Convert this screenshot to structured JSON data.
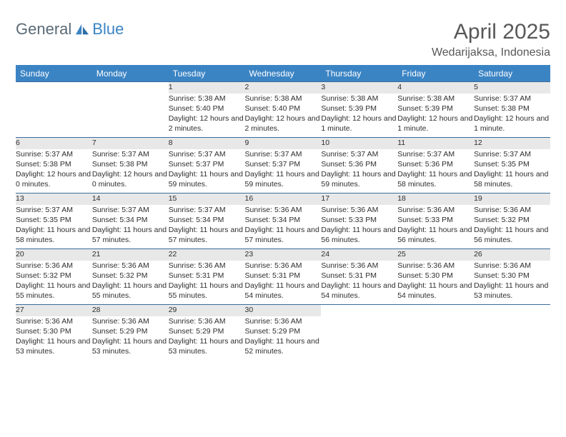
{
  "logo": {
    "text1": "General",
    "text2": "Blue"
  },
  "title": {
    "month": "April 2025",
    "location": "Wedarijaksa, Indonesia"
  },
  "colors": {
    "header_bg": "#3b84c4",
    "header_text": "#ffffff",
    "daynum_bg": "#e8e8e8",
    "daynum_text": "#6a6a6a",
    "row_border": "#3b6d9c",
    "body_text": "#2e2e2e",
    "logo_gray": "#5a6a76",
    "logo_blue": "#3b84c4",
    "title_text": "#585858"
  },
  "day_headers": [
    "Sunday",
    "Monday",
    "Tuesday",
    "Wednesday",
    "Thursday",
    "Friday",
    "Saturday"
  ],
  "weeks": [
    [
      null,
      null,
      {
        "n": "1",
        "sr": "5:38 AM",
        "ss": "5:40 PM",
        "dl": "12 hours and 2 minutes."
      },
      {
        "n": "2",
        "sr": "5:38 AM",
        "ss": "5:40 PM",
        "dl": "12 hours and 2 minutes."
      },
      {
        "n": "3",
        "sr": "5:38 AM",
        "ss": "5:39 PM",
        "dl": "12 hours and 1 minute."
      },
      {
        "n": "4",
        "sr": "5:38 AM",
        "ss": "5:39 PM",
        "dl": "12 hours and 1 minute."
      },
      {
        "n": "5",
        "sr": "5:37 AM",
        "ss": "5:38 PM",
        "dl": "12 hours and 1 minute."
      }
    ],
    [
      {
        "n": "6",
        "sr": "5:37 AM",
        "ss": "5:38 PM",
        "dl": "12 hours and 0 minutes."
      },
      {
        "n": "7",
        "sr": "5:37 AM",
        "ss": "5:38 PM",
        "dl": "12 hours and 0 minutes."
      },
      {
        "n": "8",
        "sr": "5:37 AM",
        "ss": "5:37 PM",
        "dl": "11 hours and 59 minutes."
      },
      {
        "n": "9",
        "sr": "5:37 AM",
        "ss": "5:37 PM",
        "dl": "11 hours and 59 minutes."
      },
      {
        "n": "10",
        "sr": "5:37 AM",
        "ss": "5:36 PM",
        "dl": "11 hours and 59 minutes."
      },
      {
        "n": "11",
        "sr": "5:37 AM",
        "ss": "5:36 PM",
        "dl": "11 hours and 58 minutes."
      },
      {
        "n": "12",
        "sr": "5:37 AM",
        "ss": "5:35 PM",
        "dl": "11 hours and 58 minutes."
      }
    ],
    [
      {
        "n": "13",
        "sr": "5:37 AM",
        "ss": "5:35 PM",
        "dl": "11 hours and 58 minutes."
      },
      {
        "n": "14",
        "sr": "5:37 AM",
        "ss": "5:34 PM",
        "dl": "11 hours and 57 minutes."
      },
      {
        "n": "15",
        "sr": "5:37 AM",
        "ss": "5:34 PM",
        "dl": "11 hours and 57 minutes."
      },
      {
        "n": "16",
        "sr": "5:36 AM",
        "ss": "5:34 PM",
        "dl": "11 hours and 57 minutes."
      },
      {
        "n": "17",
        "sr": "5:36 AM",
        "ss": "5:33 PM",
        "dl": "11 hours and 56 minutes."
      },
      {
        "n": "18",
        "sr": "5:36 AM",
        "ss": "5:33 PM",
        "dl": "11 hours and 56 minutes."
      },
      {
        "n": "19",
        "sr": "5:36 AM",
        "ss": "5:32 PM",
        "dl": "11 hours and 56 minutes."
      }
    ],
    [
      {
        "n": "20",
        "sr": "5:36 AM",
        "ss": "5:32 PM",
        "dl": "11 hours and 55 minutes."
      },
      {
        "n": "21",
        "sr": "5:36 AM",
        "ss": "5:32 PM",
        "dl": "11 hours and 55 minutes."
      },
      {
        "n": "22",
        "sr": "5:36 AM",
        "ss": "5:31 PM",
        "dl": "11 hours and 55 minutes."
      },
      {
        "n": "23",
        "sr": "5:36 AM",
        "ss": "5:31 PM",
        "dl": "11 hours and 54 minutes."
      },
      {
        "n": "24",
        "sr": "5:36 AM",
        "ss": "5:31 PM",
        "dl": "11 hours and 54 minutes."
      },
      {
        "n": "25",
        "sr": "5:36 AM",
        "ss": "5:30 PM",
        "dl": "11 hours and 54 minutes."
      },
      {
        "n": "26",
        "sr": "5:36 AM",
        "ss": "5:30 PM",
        "dl": "11 hours and 53 minutes."
      }
    ],
    [
      {
        "n": "27",
        "sr": "5:36 AM",
        "ss": "5:30 PM",
        "dl": "11 hours and 53 minutes."
      },
      {
        "n": "28",
        "sr": "5:36 AM",
        "ss": "5:29 PM",
        "dl": "11 hours and 53 minutes."
      },
      {
        "n": "29",
        "sr": "5:36 AM",
        "ss": "5:29 PM",
        "dl": "11 hours and 53 minutes."
      },
      {
        "n": "30",
        "sr": "5:36 AM",
        "ss": "5:29 PM",
        "dl": "11 hours and 52 minutes."
      },
      null,
      null,
      null
    ]
  ],
  "labels": {
    "sunrise": "Sunrise: ",
    "sunset": "Sunset: ",
    "daylight": "Daylight: "
  }
}
